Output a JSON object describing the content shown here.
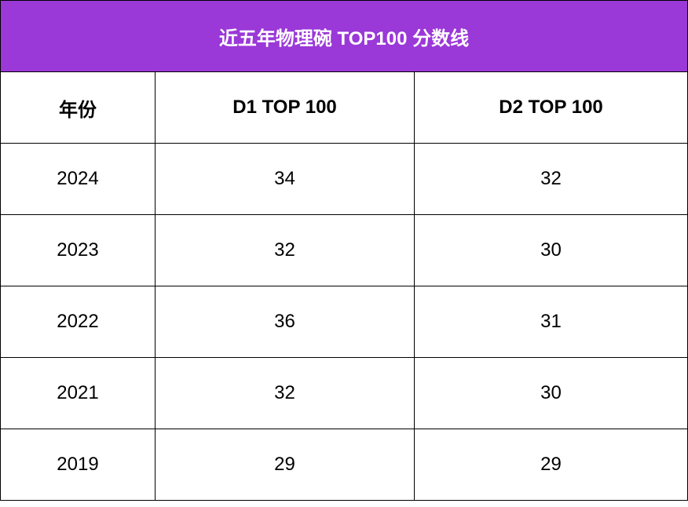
{
  "table": {
    "title": "近五年物理碗 TOP100 分数线",
    "columns": [
      "年份",
      "D1 TOP 100",
      "D2 TOP 100"
    ],
    "rows": [
      [
        2024,
        34,
        32
      ],
      [
        2023,
        32,
        30
      ],
      [
        2022,
        36,
        31
      ],
      [
        2021,
        32,
        30
      ],
      [
        2019,
        29,
        29
      ]
    ]
  }
}
